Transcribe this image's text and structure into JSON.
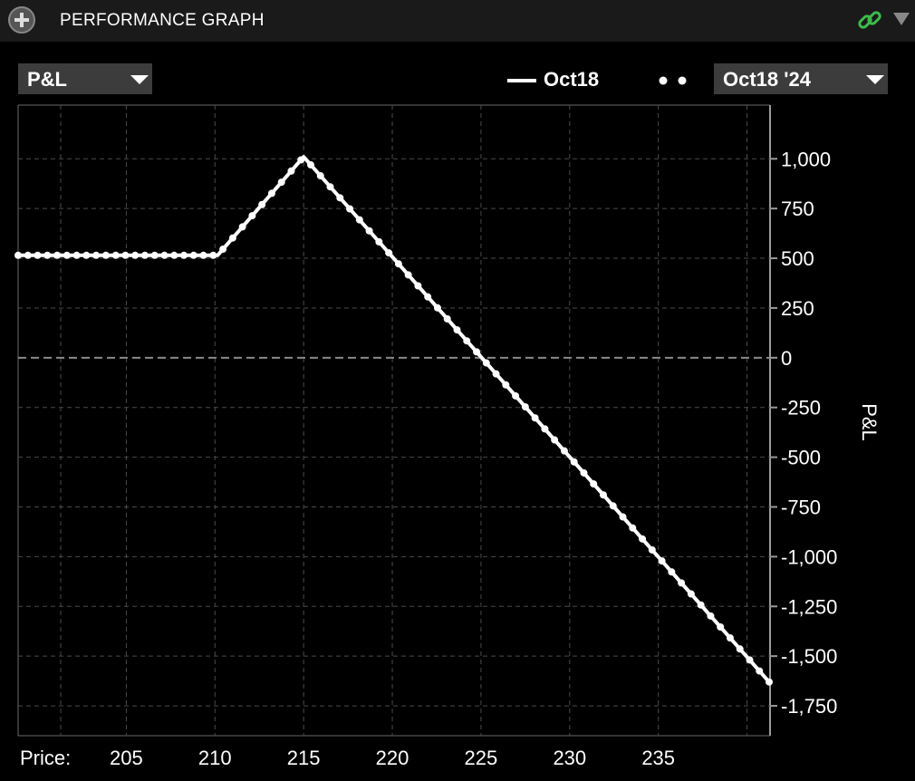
{
  "header": {
    "title": "PERFORMANCE GRAPH",
    "add_icon": "plus-circle-icon",
    "link_icon": "chain-link-icon",
    "menu_icon": "triangle-down-icon",
    "link_color": "#3dbb4a"
  },
  "controls": {
    "metric": "P&L",
    "date": "Oct18 '24"
  },
  "legend": {
    "line_label": "Oct18"
  },
  "chart_data": {
    "type": "line",
    "title": "",
    "xlabel": "Price:",
    "ylabel": "P&L",
    "xlim": [
      198.9,
      241.3
    ],
    "ylim": [
      -1900,
      1270
    ],
    "x_ticks": [
      205,
      210,
      215,
      220,
      225,
      230,
      235
    ],
    "x_gridlines": [
      201.3,
      205,
      210,
      215,
      220,
      225,
      230,
      235,
      240
    ],
    "y_ticks": [
      1000,
      750,
      500,
      250,
      0,
      -250,
      -500,
      -750,
      -1000,
      -1250,
      -1500,
      -1750
    ],
    "y_tick_labels": [
      "1,000",
      "750",
      "500",
      "250",
      "0",
      "-250",
      "-500",
      "-750",
      "-1,000",
      "-1,250",
      "-1,500",
      "-1,750"
    ],
    "grid": true,
    "series": [
      {
        "style": "solid",
        "color": "#ffffff",
        "x": [
          198.9,
          210.15,
          215,
          241.3
        ],
        "y": [
          515,
          515,
          1010,
          -1635
        ]
      },
      {
        "style": "dots",
        "color": "#ffffff",
        "x": [
          198.9,
          210.15,
          215,
          241.3
        ],
        "y": [
          515,
          515,
          1010,
          -1635
        ]
      }
    ]
  }
}
